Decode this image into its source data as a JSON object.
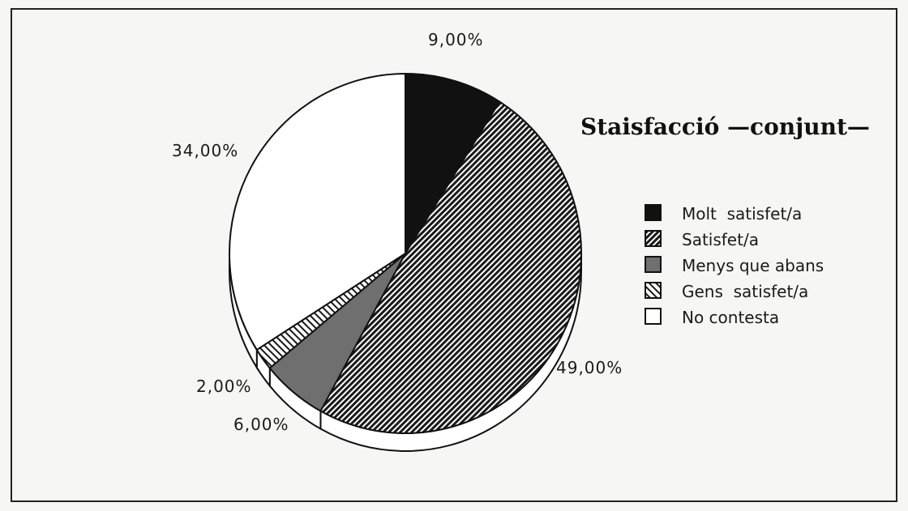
{
  "chart_data": {
    "type": "pie",
    "title": "Staisfacció —conjunt—",
    "categories": [
      "Molt satisfet/a",
      "Satisfet/a",
      "Menys que abans",
      "Gens satisfet/a",
      "No contesta"
    ],
    "values": [
      9,
      49,
      6,
      2,
      34
    ],
    "value_labels": [
      "9,00%",
      "49,00%",
      "6,00%",
      "2,00%",
      "34,00%"
    ],
    "legend": [
      {
        "label": "Molt  satisfet/a",
        "fill": "solid-dark"
      },
      {
        "label": "Satisfet/a",
        "fill": "diagonal-hatch-dense"
      },
      {
        "label": "Menys que abans",
        "fill": "solid-gray"
      },
      {
        "label": "Gens  satisfet/a",
        "fill": "diagonal-hatch-light"
      },
      {
        "label": "No contesta",
        "fill": "white"
      }
    ],
    "legend_position": "right",
    "start_angle_deg": 0,
    "direction": "clockwise",
    "style": "3d-extruded",
    "colors": {
      "dark": "#111111",
      "gray": "#6f6f6f",
      "white": "#ffffff",
      "outline": "#111111",
      "background": "#f6f6f4",
      "frame": "#222222"
    }
  }
}
